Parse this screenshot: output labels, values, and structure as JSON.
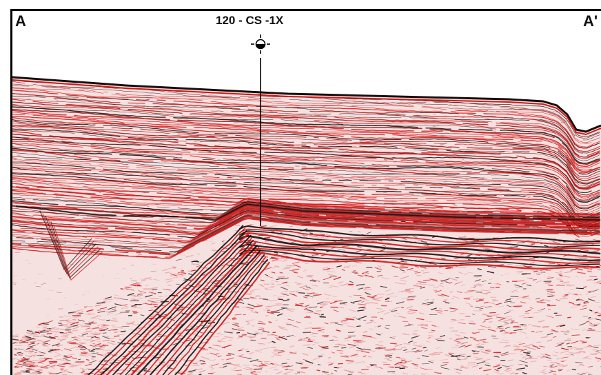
{
  "section": {
    "left_label": "A",
    "right_label": "A'"
  },
  "well": {
    "name": "120 - CS -1X",
    "symbol": "dry-hole-well-icon"
  },
  "colors": {
    "reflector_dark": "#1a0d0d",
    "reflector_red": "#d01818",
    "reflector_mid": "#8c1414",
    "noise_pink": "#e5a0a0",
    "frame": "#000000"
  }
}
